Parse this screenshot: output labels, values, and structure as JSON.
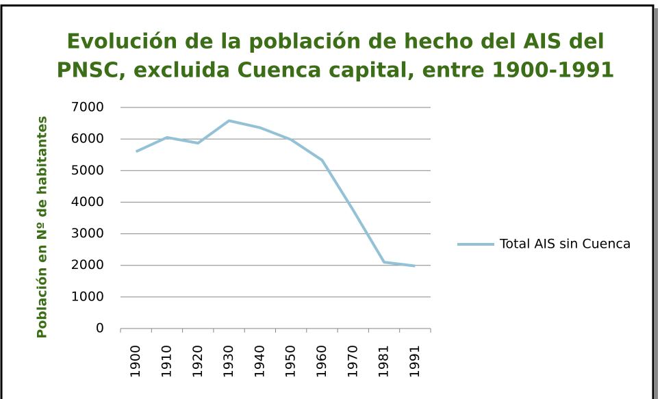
{
  "chart_data": {
    "type": "line",
    "title": [
      "Evolución de la población de hecho del AIS del",
      "PNSC, excluida Cuenca capital, entre 1900-1991"
    ],
    "y_label": "Población en Nº de habitantes",
    "categories": [
      "1900",
      "1910",
      "1920",
      "1930",
      "1940",
      "1950",
      "1960",
      "1970",
      "1981",
      "1991"
    ],
    "series": [
      {
        "name": "Total AIS sin Cuenca",
        "color": "#93c2d6",
        "values": [
          5600,
          6050,
          5870,
          6580,
          6360,
          5980,
          5330,
          3750,
          2100,
          1980
        ]
      }
    ],
    "ylim": [
      0,
      7000
    ],
    "yticks": [
      0,
      1000,
      2000,
      3000,
      4000,
      5000,
      6000,
      7000
    ],
    "grid": true,
    "legend": "right"
  }
}
